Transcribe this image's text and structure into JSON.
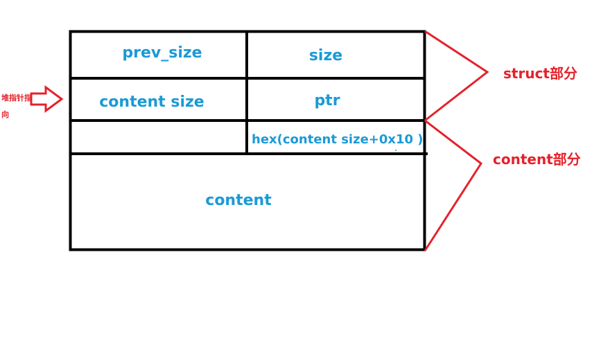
{
  "cells": {
    "prev_size": "prev_size",
    "size": "size",
    "content_size": "content size",
    "ptr": "ptr",
    "hex": "hex(content size+0x10 )",
    "content": "content"
  },
  "annotations": {
    "struct_part": "struct部分",
    "content_part": "content部分",
    "heap_pointer_line1": "堆指针指",
    "heap_pointer_line2": "向"
  },
  "colors": {
    "label_blue": "#1a9ad6",
    "annotation_red": "#e4222b",
    "box_black": "#000000"
  }
}
